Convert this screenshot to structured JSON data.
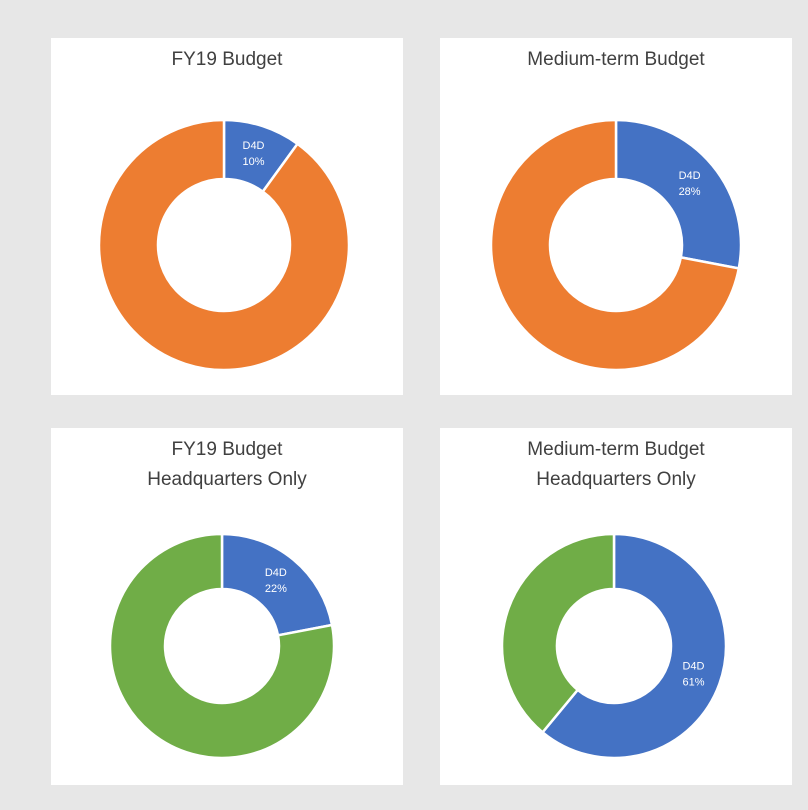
{
  "chart_data": [
    {
      "type": "pie",
      "donut": true,
      "title": [
        "FY19 Budget"
      ],
      "categories": [
        "D4D",
        null
      ],
      "values": [
        10,
        90
      ],
      "value_labels": [
        "10%",
        null
      ],
      "colors": [
        "#4472c4",
        "#ed7d31"
      ]
    },
    {
      "type": "pie",
      "donut": true,
      "title": [
        "Medium-term Budget"
      ],
      "categories": [
        "D4D",
        null
      ],
      "values": [
        28,
        72
      ],
      "value_labels": [
        "28%",
        null
      ],
      "colors": [
        "#4472c4",
        "#ed7d31"
      ]
    },
    {
      "type": "pie",
      "donut": true,
      "title": [
        "FY19 Budget",
        "Headquarters Only"
      ],
      "categories": [
        "D4D",
        null
      ],
      "values": [
        22,
        78
      ],
      "value_labels": [
        "22%",
        null
      ],
      "colors": [
        "#4472c4",
        "#70ad47"
      ]
    },
    {
      "type": "pie",
      "donut": true,
      "title": [
        "Medium-term Budget",
        "Headquarters Only"
      ],
      "categories": [
        "D4D",
        null
      ],
      "values": [
        61,
        39
      ],
      "value_labels": [
        "61%",
        null
      ],
      "colors": [
        "#4472c4",
        "#70ad47"
      ]
    }
  ]
}
